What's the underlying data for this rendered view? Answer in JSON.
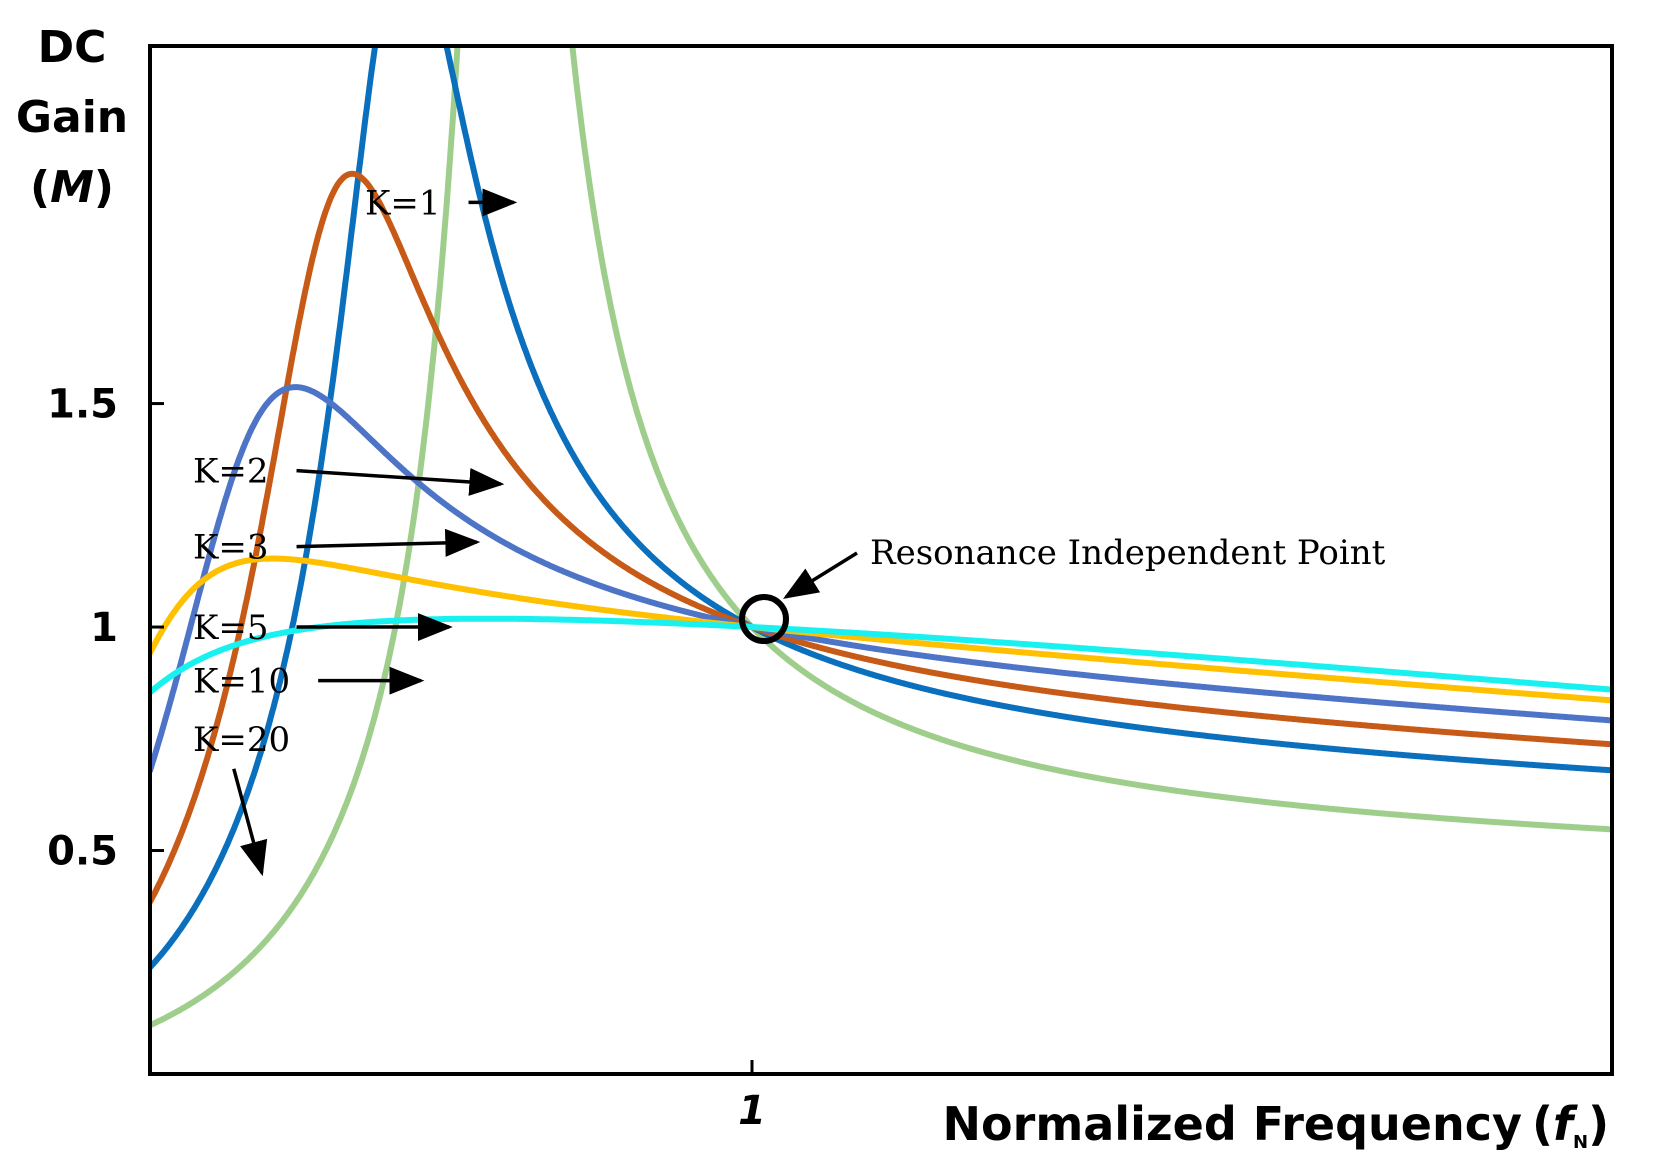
{
  "chart_data": {
    "type": "line",
    "ylabel_lines": [
      "DC",
      "Gain"
    ],
    "ylabel_symbol": "M",
    "xlabel": "Normalized Frequency",
    "xlabel_symbol": "f",
    "xlabel_subscript": "N",
    "x_range": [
      0.3,
      2.0
    ],
    "xlim": [
      0.3,
      2.0
    ],
    "ylim": [
      0.0,
      2.3
    ],
    "x_ticks": [
      {
        "value": 1,
        "label": "1"
      }
    ],
    "y_ticks": [
      {
        "value": 0.5,
        "label": "0.5"
      },
      {
        "value": 1,
        "label": "1"
      },
      {
        "value": 1.5,
        "label": "1.5"
      }
    ],
    "grid": false,
    "annotation": {
      "text": "Resonance Independent Point",
      "x": 1,
      "y": 1
    },
    "series": [
      {
        "name": "K=1",
        "K": 1,
        "Q": 0.35,
        "color": "#9fce8c",
        "label_at": [
          0.55,
          1.95
        ],
        "arrow_to": [
          0.723,
          1.95
        ]
      },
      {
        "name": "K=2",
        "K": 2,
        "Q": 0.35,
        "color": "#0a6fbd",
        "label_at": [
          0.35,
          1.35
        ],
        "arrow_to": [
          0.708,
          1.32
        ]
      },
      {
        "name": "K=3",
        "K": 3,
        "Q": 0.35,
        "color": "#c75a16",
        "label_at": [
          0.35,
          1.18
        ],
        "arrow_to": [
          0.68,
          1.19
        ]
      },
      {
        "name": "K=5",
        "K": 5,
        "Q": 0.35,
        "color": "#4d74c7",
        "label_at": [
          0.35,
          1.0
        ],
        "arrow_to": [
          0.648,
          1.0
        ]
      },
      {
        "name": "K=10",
        "K": 10,
        "Q": 0.35,
        "color": "#ffc000",
        "label_at": [
          0.35,
          0.88
        ],
        "arrow_to": [
          0.615,
          0.88
        ]
      },
      {
        "name": "K=20",
        "K": 20,
        "Q": 0.35,
        "color": "#19f0f0",
        "label_at": [
          0.35,
          0.75
        ],
        "arrow_to": [
          0.43,
          0.45
        ]
      }
    ]
  }
}
